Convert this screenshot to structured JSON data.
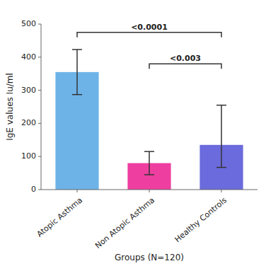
{
  "chart_data": {
    "type": "bar",
    "categories": [
      "Atopic Asthma",
      "Non Atopic Asthma",
      "Healthy Controls"
    ],
    "values": [
      355,
      80,
      135
    ],
    "errors_upper": [
      68,
      35,
      120
    ],
    "errors_lower": [
      68,
      35,
      68
    ],
    "colors": [
      "#6db3e8",
      "#ee3fa0",
      "#6b6bdd"
    ],
    "ylabel": "IgE values Iu/ml",
    "xlabel": "Groups (N=120)",
    "ylim": [
      0,
      500
    ],
    "yticks": [
      0,
      100,
      200,
      300,
      400,
      500
    ],
    "grid": false,
    "annotations": [
      {
        "text": "<0.0001",
        "from": "Atopic Asthma",
        "to": "Healthy Controls",
        "y": 475
      },
      {
        "text": "<0.003",
        "from": "Non Atopic Asthma",
        "to": "Healthy Controls",
        "y": 380
      }
    ]
  }
}
